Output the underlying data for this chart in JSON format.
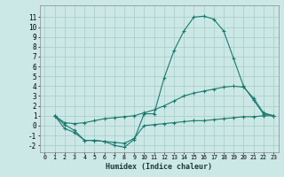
{
  "xlabel": "Humidex (Indice chaleur)",
  "bg_color": "#cce8e6",
  "grid_color": "#aacfcc",
  "line_color": "#1a7a6e",
  "xlim": [
    -0.5,
    23.5
  ],
  "ylim": [
    -2.7,
    12.2
  ],
  "xticks": [
    0,
    1,
    2,
    3,
    4,
    5,
    6,
    7,
    8,
    9,
    10,
    11,
    12,
    13,
    14,
    15,
    16,
    17,
    18,
    19,
    20,
    21,
    22,
    23
  ],
  "yticks": [
    -2,
    -1,
    0,
    1,
    2,
    3,
    4,
    5,
    6,
    7,
    8,
    9,
    10,
    11
  ],
  "curve_max": [
    [
      1,
      1.0
    ],
    [
      2,
      0.1
    ],
    [
      3,
      -0.5
    ],
    [
      4,
      -1.5
    ],
    [
      5,
      -1.5
    ],
    [
      6,
      -1.6
    ],
    [
      7,
      -2.0
    ],
    [
      8,
      -2.2
    ],
    [
      9,
      -1.4
    ],
    [
      10,
      1.2
    ],
    [
      11,
      1.2
    ],
    [
      12,
      4.8
    ],
    [
      13,
      7.6
    ],
    [
      14,
      9.6
    ],
    [
      15,
      11.0
    ],
    [
      16,
      11.1
    ],
    [
      17,
      10.8
    ],
    [
      18,
      9.6
    ],
    [
      19,
      6.8
    ],
    [
      20,
      4.0
    ],
    [
      21,
      2.6
    ],
    [
      22,
      1.2
    ],
    [
      23,
      1.0
    ]
  ],
  "curve_mean": [
    [
      1,
      1.0
    ],
    [
      2,
      0.3
    ],
    [
      3,
      0.2
    ],
    [
      4,
      0.3
    ],
    [
      5,
      0.5
    ],
    [
      6,
      0.7
    ],
    [
      7,
      0.8
    ],
    [
      8,
      0.9
    ],
    [
      9,
      1.0
    ],
    [
      10,
      1.3
    ],
    [
      11,
      1.6
    ],
    [
      12,
      2.0
    ],
    [
      13,
      2.5
    ],
    [
      14,
      3.0
    ],
    [
      15,
      3.3
    ],
    [
      16,
      3.5
    ],
    [
      17,
      3.7
    ],
    [
      18,
      3.9
    ],
    [
      19,
      4.0
    ],
    [
      20,
      3.9
    ],
    [
      21,
      2.8
    ],
    [
      22,
      1.3
    ],
    [
      23,
      1.0
    ]
  ],
  "curve_min": [
    [
      1,
      1.0
    ],
    [
      2,
      -0.3
    ],
    [
      3,
      -0.7
    ],
    [
      4,
      -1.5
    ],
    [
      5,
      -1.5
    ],
    [
      6,
      -1.6
    ],
    [
      7,
      -1.7
    ],
    [
      8,
      -1.8
    ],
    [
      9,
      -1.3
    ],
    [
      10,
      0.0
    ],
    [
      11,
      0.1
    ],
    [
      12,
      0.2
    ],
    [
      13,
      0.3
    ],
    [
      14,
      0.4
    ],
    [
      15,
      0.5
    ],
    [
      16,
      0.5
    ],
    [
      17,
      0.6
    ],
    [
      18,
      0.7
    ],
    [
      19,
      0.8
    ],
    [
      20,
      0.9
    ],
    [
      21,
      0.9
    ],
    [
      22,
      1.0
    ],
    [
      23,
      1.0
    ]
  ]
}
